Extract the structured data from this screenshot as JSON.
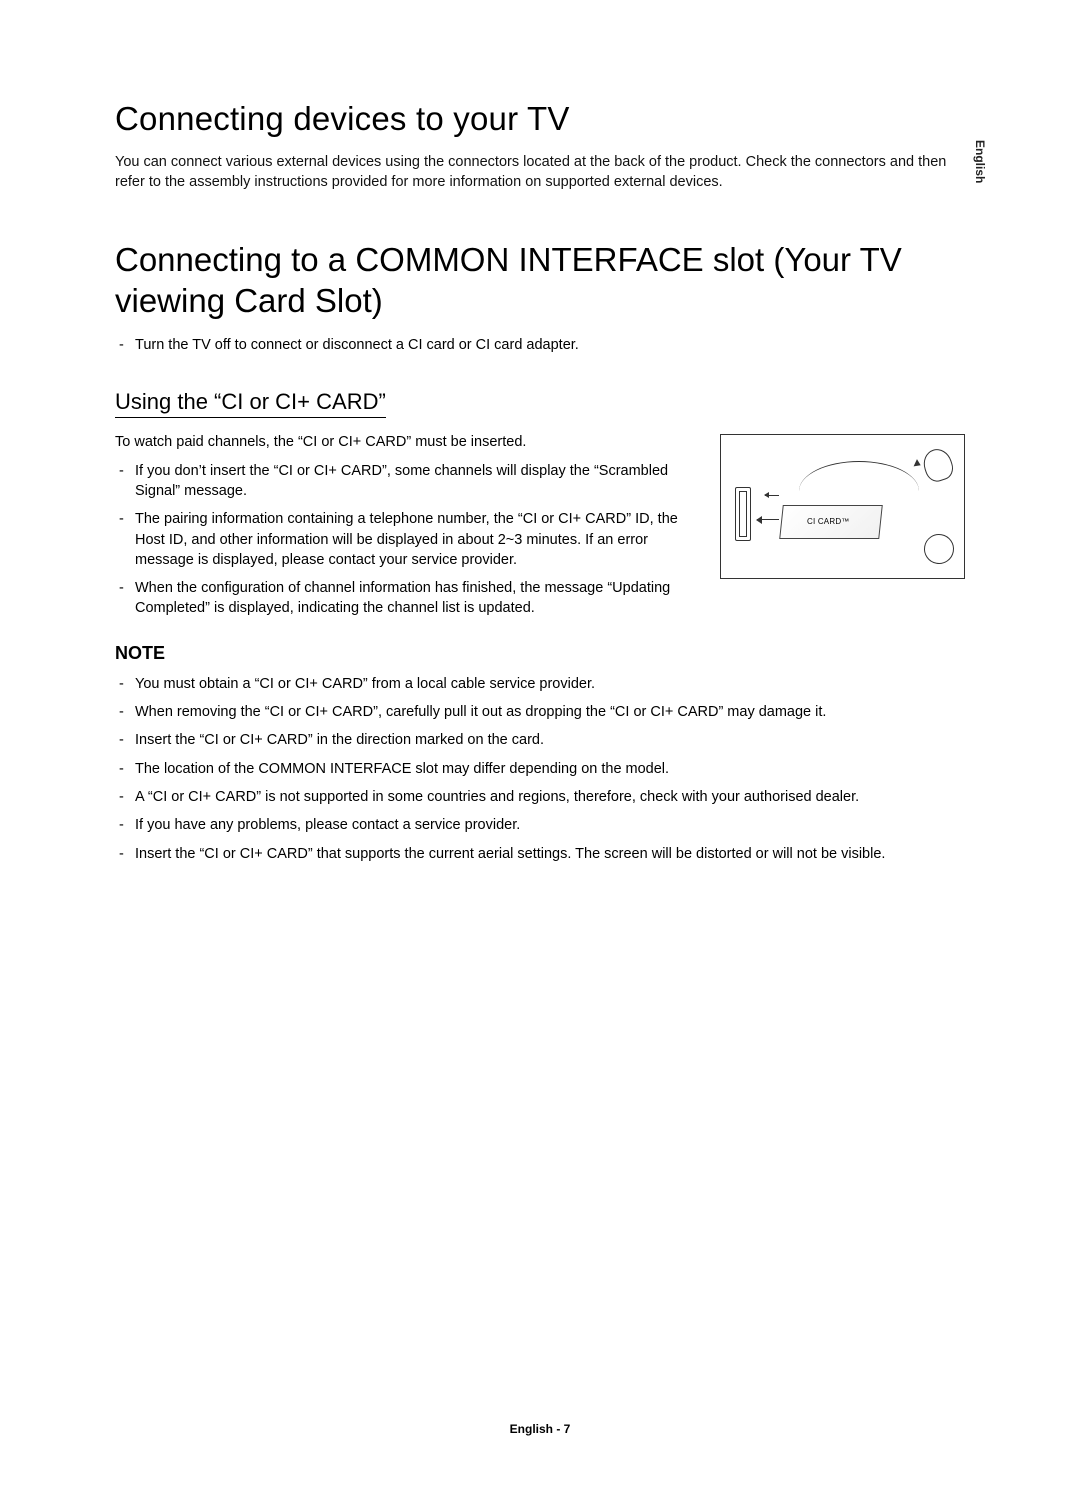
{
  "side_tab": "English",
  "section1": {
    "title": "Connecting devices to your TV",
    "intro": "You can connect various external devices using the connectors located at the back of the product. Check the connectors and then refer to the assembly instructions provided for more information on supported external devices."
  },
  "section2": {
    "title": "Connecting to a COMMON INTERFACE slot (Your TV viewing Card Slot)",
    "bullets": [
      "Turn the TV off to connect or disconnect a CI card or CI card adapter."
    ]
  },
  "section3": {
    "title": "Using the “CI or CI+ CARD”",
    "intro": "To watch paid channels, the “CI or CI+ CARD” must be inserted.",
    "bullets": [
      "If you don’t insert the “CI or CI+ CARD”, some channels will display the “Scrambled Signal” message.",
      "The pairing information containing a telephone number, the “CI or CI+ CARD” ID, the Host ID, and other information will be displayed in about 2~3 minutes. If an error message is displayed, please contact your service provider.",
      "When the configuration of channel information has finished, the message “Updating Completed” is displayed, indicating the channel list is updated."
    ],
    "figure_card_label": "CI CARD™"
  },
  "note": {
    "heading": "NOTE",
    "bullets": [
      "You must obtain a “CI or CI+ CARD” from a local cable service provider.",
      "When removing the “CI or CI+ CARD”, carefully pull it out as dropping the “CI or CI+ CARD” may damage it.",
      "Insert the “CI or CI+ CARD” in the direction marked on the card.",
      "The location of the COMMON INTERFACE slot may differ depending on the model.",
      "A “CI or CI+ CARD” is not supported in some countries and regions, therefore, check with your authorised dealer.",
      "If you have any problems, please contact a service provider.",
      "Insert the “CI or CI+ CARD” that supports the current aerial settings. The screen will be distorted or will not be visible."
    ]
  },
  "footer": "English - 7"
}
